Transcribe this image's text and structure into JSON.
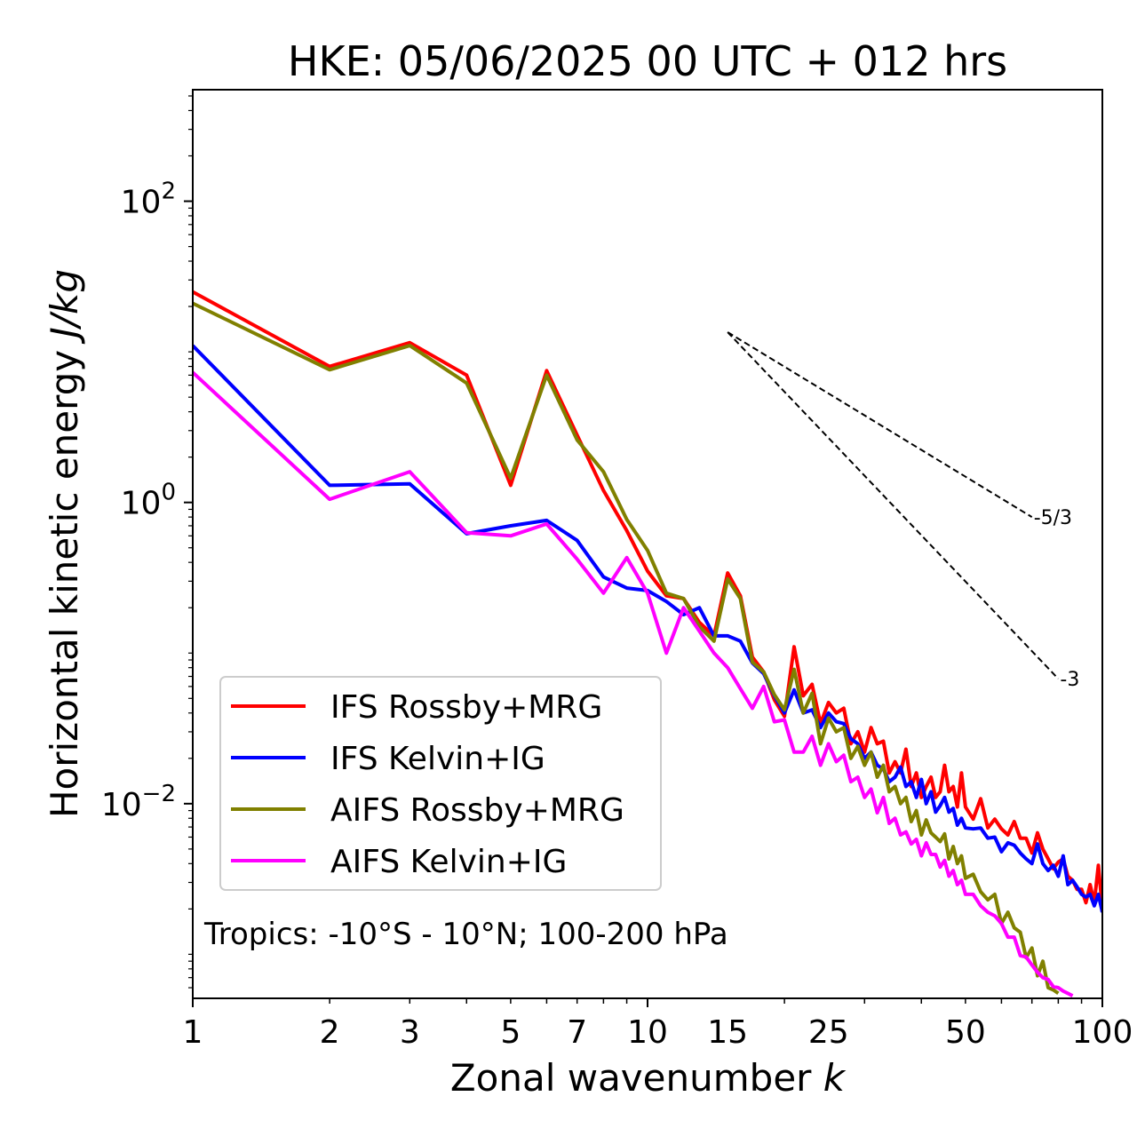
{
  "chart_data": {
    "type": "line",
    "title": "HKE: 05/06/2025 00 UTC + 012 hrs",
    "xlabel": "Zonal wavenumber",
    "xlabel_var": "k",
    "ylabel": "Horizontal kinetic energy",
    "ylabel_unit": "J/kg",
    "xscale": "log",
    "yscale": "log",
    "xlim": [
      1,
      100
    ],
    "ylim": [
      0.00051,
      550
    ],
    "grid": false,
    "legend_position": "lower-left",
    "annotation": "Tropics: -10°S - 10°N; 100-200 hPa",
    "x_tick_labels": [
      {
        "value": 1,
        "label": "1"
      },
      {
        "value": 2,
        "label": "2"
      },
      {
        "value": 3,
        "label": "3"
      },
      {
        "value": 5,
        "label": "5"
      },
      {
        "value": 7,
        "label": "7"
      },
      {
        "value": 10,
        "label": "10"
      },
      {
        "value": 15,
        "label": "15"
      },
      {
        "value": 25,
        "label": "25"
      },
      {
        "value": 50,
        "label": "50"
      },
      {
        "value": 100,
        "label": "100"
      }
    ],
    "y_tick_labels": [
      {
        "value": 100,
        "base": "10",
        "exp": "2"
      },
      {
        "value": 1,
        "base": "10",
        "exp": "0"
      },
      {
        "value": 0.01,
        "base": "10",
        "exp": "−2"
      }
    ],
    "reference_slopes": [
      {
        "label": "-5/3",
        "x_start": 15,
        "x_end": 70,
        "y_start": 13.5,
        "y_end": 0.8
      },
      {
        "label": "-3",
        "x_start": 15,
        "x_end": 80,
        "y_start": 13.5,
        "y_end": 0.0675
      }
    ],
    "series": [
      {
        "name": "IFS Rossby+MRG",
        "color": "#ff0000",
        "x": [
          1,
          2,
          3,
          4,
          5,
          6,
          7,
          8,
          9,
          10,
          11,
          12,
          13,
          14,
          15,
          16,
          17,
          18,
          19,
          20,
          21,
          22,
          23,
          24,
          25,
          26,
          27,
          28,
          29,
          30,
          31,
          32,
          33,
          34,
          35,
          36,
          37,
          38,
          39,
          40,
          41,
          42,
          43,
          44,
          45,
          46,
          47,
          48,
          49,
          50,
          52,
          54,
          56,
          58,
          60,
          62,
          64,
          66,
          68,
          70,
          72,
          74,
          76,
          78,
          80,
          82,
          84,
          86,
          88,
          90,
          92,
          94,
          96,
          98,
          100
        ],
        "y": [
          25,
          8.0,
          11.5,
          7.0,
          1.3,
          7.5,
          2.8,
          1.2,
          0.65,
          0.35,
          0.24,
          0.23,
          0.16,
          0.13,
          0.34,
          0.24,
          0.094,
          0.075,
          0.049,
          0.038,
          0.11,
          0.052,
          0.062,
          0.034,
          0.047,
          0.04,
          0.043,
          0.025,
          0.03,
          0.022,
          0.032,
          0.025,
          0.026,
          0.016,
          0.019,
          0.016,
          0.023,
          0.013,
          0.016,
          0.011,
          0.013,
          0.015,
          0.011,
          0.012,
          0.018,
          0.012,
          0.013,
          0.0095,
          0.016,
          0.0095,
          0.0079,
          0.0108,
          0.0069,
          0.0079,
          0.0068,
          0.0062,
          0.0076,
          0.0059,
          0.0059,
          0.0047,
          0.0064,
          0.005,
          0.0043,
          0.0037,
          0.0041,
          0.0043,
          0.0033,
          0.0031,
          0.0027,
          0.0027,
          0.0022,
          0.0029,
          0.0022,
          0.0039,
          0.002
        ]
      },
      {
        "name": "IFS Kelvin+IG",
        "color": "#0000ff",
        "x": [
          1,
          2,
          3,
          4,
          5,
          6,
          7,
          8,
          9,
          10,
          11,
          12,
          13,
          14,
          15,
          16,
          17,
          18,
          19,
          20,
          21,
          22,
          23,
          24,
          25,
          26,
          27,
          28,
          29,
          30,
          31,
          32,
          33,
          34,
          35,
          36,
          37,
          38,
          39,
          40,
          41,
          42,
          43,
          44,
          45,
          46,
          47,
          48,
          49,
          50,
          52,
          54,
          56,
          58,
          60,
          62,
          64,
          66,
          68,
          70,
          72,
          74,
          76,
          78,
          80,
          82,
          84,
          86,
          88,
          90,
          92,
          94,
          96,
          98,
          100
        ],
        "y": [
          11,
          1.3,
          1.33,
          0.62,
          0.7,
          0.76,
          0.56,
          0.32,
          0.27,
          0.26,
          0.22,
          0.18,
          0.2,
          0.13,
          0.13,
          0.12,
          0.086,
          0.073,
          0.052,
          0.04,
          0.057,
          0.04,
          0.042,
          0.032,
          0.04,
          0.035,
          0.034,
          0.027,
          0.025,
          0.02,
          0.022,
          0.018,
          0.017,
          0.014,
          0.015,
          0.0175,
          0.013,
          0.014,
          0.011,
          0.0145,
          0.01,
          0.012,
          0.0088,
          0.0097,
          0.011,
          0.0088,
          0.0093,
          0.0072,
          0.008,
          0.0069,
          0.0068,
          0.0069,
          0.0059,
          0.006,
          0.0048,
          0.0055,
          0.0053,
          0.0047,
          0.0043,
          0.004,
          0.0054,
          0.004,
          0.0036,
          0.0039,
          0.0033,
          0.0045,
          0.0029,
          0.0031,
          0.0028,
          0.0025,
          0.0024,
          0.0025,
          0.0021,
          0.0025,
          0.0019
        ]
      },
      {
        "name": "AIFS Rossby+MRG",
        "color": "#808000",
        "x": [
          1,
          2,
          3,
          4,
          5,
          6,
          7,
          8,
          9,
          10,
          11,
          12,
          13,
          14,
          15,
          16,
          17,
          18,
          19,
          20,
          21,
          22,
          23,
          24,
          25,
          26,
          27,
          28,
          29,
          30,
          31,
          32,
          33,
          34,
          35,
          36,
          37,
          38,
          39,
          40,
          41,
          42,
          43,
          44,
          45,
          46,
          47,
          48,
          49,
          50,
          52,
          54,
          56,
          58,
          60,
          62,
          64,
          66,
          68,
          70,
          72,
          74,
          76,
          78,
          80
        ],
        "y": [
          21,
          7.6,
          11,
          6.2,
          1.45,
          7.0,
          2.6,
          1.6,
          0.77,
          0.48,
          0.25,
          0.23,
          0.15,
          0.12,
          0.31,
          0.23,
          0.087,
          0.075,
          0.053,
          0.042,
          0.078,
          0.04,
          0.054,
          0.025,
          0.037,
          0.03,
          0.032,
          0.02,
          0.024,
          0.018,
          0.022,
          0.015,
          0.018,
          0.012,
          0.013,
          0.01,
          0.011,
          0.0076,
          0.009,
          0.0062,
          0.0078,
          0.0064,
          0.006,
          0.0056,
          0.0063,
          0.0043,
          0.0052,
          0.004,
          0.0045,
          0.0032,
          0.0034,
          0.0026,
          0.0023,
          0.0025,
          0.0016,
          0.0019,
          0.0015,
          0.0014,
          0.00095,
          0.0011,
          0.00072,
          0.0009,
          0.0006,
          0.00058,
          0.00055
        ]
      },
      {
        "name": "AIFS Kelvin+IG",
        "color": "#ff00ff",
        "x": [
          1,
          2,
          3,
          4,
          5,
          6,
          7,
          8,
          9,
          10,
          11,
          12,
          13,
          14,
          15,
          16,
          17,
          18,
          19,
          20,
          21,
          22,
          23,
          24,
          25,
          26,
          27,
          28,
          29,
          30,
          31,
          32,
          33,
          34,
          35,
          36,
          37,
          38,
          39,
          40,
          41,
          42,
          43,
          44,
          45,
          46,
          47,
          48,
          49,
          50,
          52,
          54,
          56,
          58,
          60,
          62,
          64,
          66,
          68,
          70,
          72,
          74,
          76,
          78,
          80,
          82,
          84,
          86
        ],
        "y": [
          7.3,
          1.05,
          1.6,
          0.63,
          0.6,
          0.72,
          0.42,
          0.25,
          0.43,
          0.25,
          0.1,
          0.2,
          0.14,
          0.1,
          0.08,
          0.058,
          0.043,
          0.06,
          0.035,
          0.036,
          0.022,
          0.022,
          0.028,
          0.018,
          0.025,
          0.019,
          0.021,
          0.014,
          0.015,
          0.011,
          0.0125,
          0.0087,
          0.011,
          0.0074,
          0.008,
          0.0062,
          0.0065,
          0.0054,
          0.0058,
          0.0045,
          0.0055,
          0.0046,
          0.0046,
          0.0038,
          0.0042,
          0.0033,
          0.0036,
          0.0029,
          0.0031,
          0.0025,
          0.0025,
          0.0021,
          0.0019,
          0.0018,
          0.0016,
          0.0013,
          0.0013,
          0.00098,
          0.00096,
          0.00085,
          0.00076,
          0.0007,
          0.00068,
          0.00061,
          0.0006,
          0.00057,
          0.00055,
          0.00053
        ]
      }
    ]
  }
}
